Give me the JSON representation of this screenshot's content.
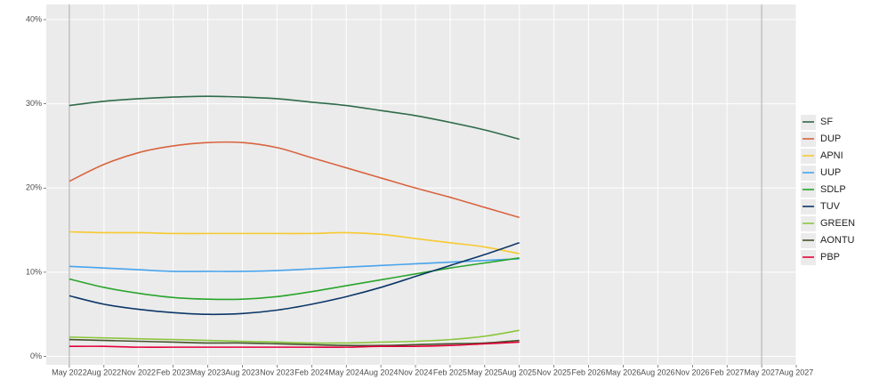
{
  "chart_data": {
    "type": "line",
    "x": [
      "2022-05",
      "2022-08",
      "2022-11",
      "2023-02",
      "2023-05",
      "2023-08",
      "2023-11",
      "2024-02",
      "2024-05",
      "2024-08",
      "2024-11",
      "2025-02",
      "2025-05",
      "2025-08"
    ],
    "series": [
      {
        "name": "SF",
        "color": "#2f6b4a",
        "values": [
          29.8,
          30.3,
          30.6,
          30.8,
          30.9,
          30.8,
          30.6,
          30.2,
          29.8,
          29.2,
          28.6,
          27.8,
          26.9,
          25.8
        ]
      },
      {
        "name": "DUP",
        "color": "#d9643f",
        "values": [
          20.8,
          22.8,
          24.2,
          25.0,
          25.4,
          25.4,
          24.8,
          23.6,
          22.4,
          21.2,
          20.0,
          18.9,
          17.7,
          16.5
        ]
      },
      {
        "name": "APNI",
        "color": "#f6c92f",
        "values": [
          14.8,
          14.7,
          14.7,
          14.6,
          14.6,
          14.6,
          14.6,
          14.6,
          14.7,
          14.5,
          14.0,
          13.5,
          13.0,
          12.2
        ]
      },
      {
        "name": "UUP",
        "color": "#48a3ec",
        "values": [
          10.7,
          10.5,
          10.3,
          10.1,
          10.1,
          10.1,
          10.2,
          10.4,
          10.6,
          10.8,
          11.0,
          11.2,
          11.4,
          11.6
        ]
      },
      {
        "name": "SDLP",
        "color": "#2aa52c",
        "values": [
          9.2,
          8.2,
          7.5,
          7.0,
          6.8,
          6.8,
          7.1,
          7.7,
          8.4,
          9.1,
          9.8,
          10.5,
          11.1,
          11.7
        ]
      },
      {
        "name": "TUV",
        "color": "#0c3768",
        "values": [
          7.2,
          6.2,
          5.6,
          5.2,
          5.0,
          5.1,
          5.5,
          6.2,
          7.1,
          8.2,
          9.5,
          10.8,
          12.1,
          13.5
        ]
      },
      {
        "name": "GREEN",
        "color": "#8cc63f",
        "values": [
          2.3,
          2.2,
          2.1,
          2.0,
          1.9,
          1.8,
          1.7,
          1.6,
          1.6,
          1.7,
          1.8,
          2.0,
          2.4,
          3.1
        ]
      },
      {
        "name": "AONTU",
        "color": "#44532a",
        "values": [
          2.0,
          1.9,
          1.8,
          1.7,
          1.6,
          1.6,
          1.5,
          1.4,
          1.3,
          1.3,
          1.4,
          1.5,
          1.6,
          1.9
        ]
      },
      {
        "name": "PBP",
        "color": "#e4003b",
        "values": [
          1.2,
          1.2,
          1.1,
          1.1,
          1.1,
          1.1,
          1.1,
          1.1,
          1.1,
          1.2,
          1.2,
          1.3,
          1.5,
          1.7
        ]
      }
    ],
    "xlim": [
      "2022-03",
      "2027-08"
    ],
    "xticks": [
      {
        "value": "2022-05",
        "label": "May 2022"
      },
      {
        "value": "2022-08",
        "label": "Aug 2022"
      },
      {
        "value": "2022-11",
        "label": "Nov 2022"
      },
      {
        "value": "2023-02",
        "label": "Feb 2023"
      },
      {
        "value": "2023-05",
        "label": "May 2023"
      },
      {
        "value": "2023-08",
        "label": "Aug 2023"
      },
      {
        "value": "2023-11",
        "label": "Nov 2023"
      },
      {
        "value": "2024-02",
        "label": "Feb 2024"
      },
      {
        "value": "2024-05",
        "label": "May 2024"
      },
      {
        "value": "2024-08",
        "label": "Aug 2024"
      },
      {
        "value": "2024-11",
        "label": "Nov 2024"
      },
      {
        "value": "2025-02",
        "label": "Feb 2025"
      },
      {
        "value": "2025-05",
        "label": "May 2025"
      },
      {
        "value": "2025-08",
        "label": "Aug 2025"
      },
      {
        "value": "2025-11",
        "label": "Nov 2025"
      },
      {
        "value": "2026-02",
        "label": "Feb 2026"
      },
      {
        "value": "2026-05",
        "label": "May 2026"
      },
      {
        "value": "2026-08",
        "label": "Aug 2026"
      },
      {
        "value": "2026-11",
        "label": "Nov 2026"
      },
      {
        "value": "2027-02",
        "label": "Feb 2027"
      },
      {
        "value": "2027-05",
        "label": "May 2027"
      },
      {
        "value": "2027-08",
        "label": "Aug 2027"
      }
    ],
    "ylim": [
      -1,
      41.8
    ],
    "yticks": [
      {
        "value": 0,
        "label": "0%"
      },
      {
        "value": 10,
        "label": "10%"
      },
      {
        "value": 20,
        "label": "20%"
      },
      {
        "value": 30,
        "label": "30%"
      },
      {
        "value": 40,
        "label": "40%"
      }
    ],
    "vlines": [
      "2022-05",
      "2027-05"
    ],
    "grid": true,
    "legend": "right"
  }
}
